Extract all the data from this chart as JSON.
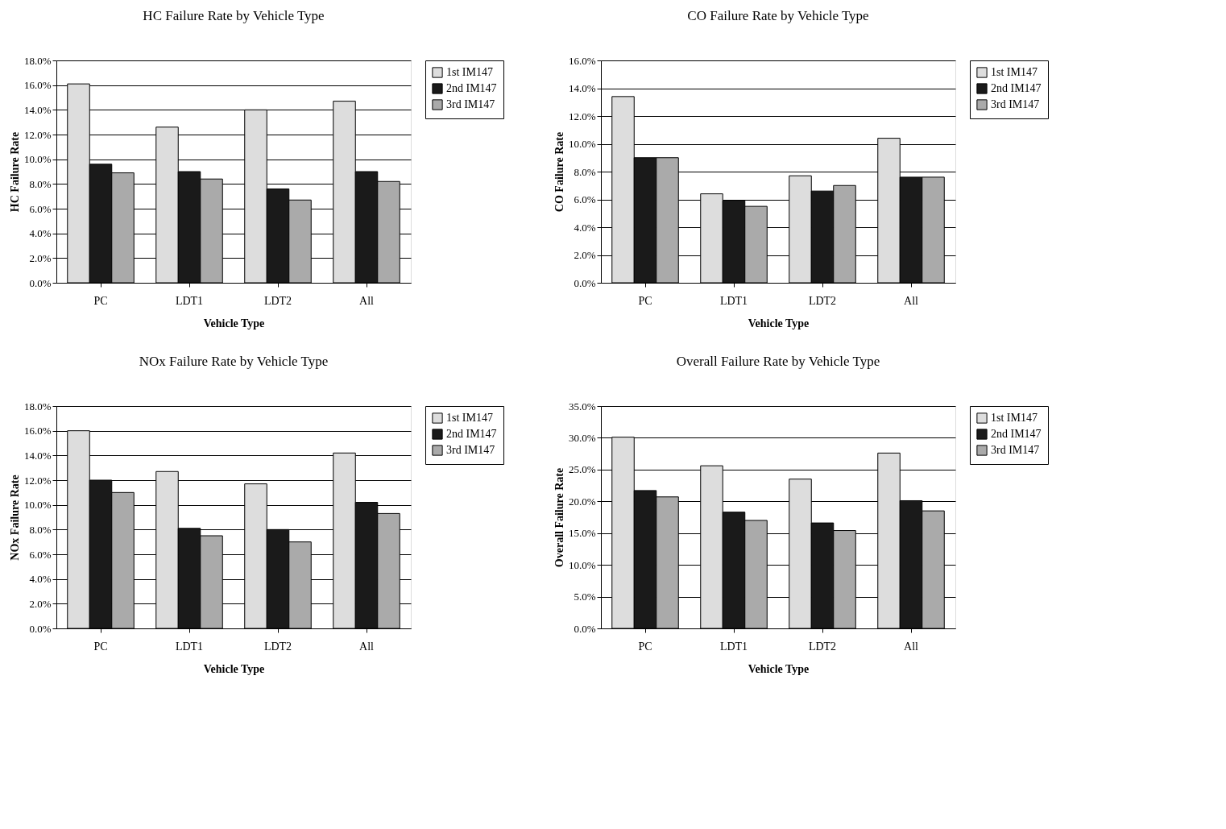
{
  "chart_data": [
    {
      "type": "bar",
      "title": "HC Failure Rate by Vehicle Type",
      "xlabel": "Vehicle Type",
      "ylabel": "HC Failure Rate",
      "categories": [
        "PC",
        "LDT1",
        "LDT2",
        "All"
      ],
      "series": [
        {
          "name": "1st IM147",
          "color": "#dddddd",
          "values": [
            16.1,
            12.6,
            14.0,
            14.7
          ]
        },
        {
          "name": "2nd IM147",
          "color": "#1a1a1a",
          "values": [
            9.6,
            9.0,
            7.6,
            9.0
          ]
        },
        {
          "name": "3rd IM147",
          "color": "#aaaaaa",
          "values": [
            8.9,
            8.4,
            6.7,
            8.2
          ]
        }
      ],
      "ylim": [
        0,
        18
      ],
      "yticks": [
        {
          "value": 0,
          "label": "0.0%"
        },
        {
          "value": 2,
          "label": "2.0%"
        },
        {
          "value": 4,
          "label": "4.0%"
        },
        {
          "value": 6,
          "label": "6.0%"
        },
        {
          "value": 8,
          "label": "8.0%"
        },
        {
          "value": 10,
          "label": "10.0%"
        },
        {
          "value": 12,
          "label": "12.0%"
        },
        {
          "value": 14,
          "label": "14.0%"
        },
        {
          "value": 16,
          "label": "16.0%"
        },
        {
          "value": 18,
          "label": "18.0%"
        }
      ],
      "grid": "y",
      "legend": "right"
    },
    {
      "type": "bar",
      "title": "CO Failure Rate by Vehicle Type",
      "xlabel": "Vehicle Type",
      "ylabel": "CO Failure Rate",
      "categories": [
        "PC",
        "LDT1",
        "LDT2",
        "All"
      ],
      "series": [
        {
          "name": "1st IM147",
          "color": "#dddddd",
          "values": [
            13.4,
            6.4,
            7.7,
            10.4
          ]
        },
        {
          "name": "2nd IM147",
          "color": "#1a1a1a",
          "values": [
            9.0,
            5.9,
            6.6,
            7.6
          ]
        },
        {
          "name": "3rd IM147",
          "color": "#aaaaaa",
          "values": [
            9.0,
            5.5,
            7.0,
            7.6
          ]
        }
      ],
      "ylim": [
        0,
        16
      ],
      "yticks": [
        {
          "value": 0,
          "label": "0.0%"
        },
        {
          "value": 2,
          "label": "2.0%"
        },
        {
          "value": 4,
          "label": "4.0%"
        },
        {
          "value": 6,
          "label": "6.0%"
        },
        {
          "value": 8,
          "label": "8.0%"
        },
        {
          "value": 10,
          "label": "10.0%"
        },
        {
          "value": 12,
          "label": "12.0%"
        },
        {
          "value": 14,
          "label": "14.0%"
        },
        {
          "value": 16,
          "label": "16.0%"
        }
      ],
      "grid": "y",
      "legend": "right"
    },
    {
      "type": "bar",
      "title": "NOx Failure Rate by Vehicle Type",
      "xlabel": "Vehicle Type",
      "ylabel": "NOx Failure Rate",
      "categories": [
        "PC",
        "LDT1",
        "LDT2",
        "All"
      ],
      "series": [
        {
          "name": "1st IM147",
          "color": "#dddddd",
          "values": [
            16.0,
            12.7,
            11.7,
            14.2
          ]
        },
        {
          "name": "2nd IM147",
          "color": "#1a1a1a",
          "values": [
            12.0,
            8.1,
            8.0,
            10.2
          ]
        },
        {
          "name": "3rd IM147",
          "color": "#aaaaaa",
          "values": [
            11.0,
            7.5,
            7.0,
            9.3
          ]
        }
      ],
      "ylim": [
        0,
        18
      ],
      "yticks": [
        {
          "value": 0,
          "label": "0.0%"
        },
        {
          "value": 2,
          "label": "2.0%"
        },
        {
          "value": 4,
          "label": "4.0%"
        },
        {
          "value": 6,
          "label": "6.0%"
        },
        {
          "value": 8,
          "label": "8.0%"
        },
        {
          "value": 10,
          "label": "10.0%"
        },
        {
          "value": 12,
          "label": "12.0%"
        },
        {
          "value": 14,
          "label": "14.0%"
        },
        {
          "value": 16,
          "label": "16.0%"
        },
        {
          "value": 18,
          "label": "18.0%"
        }
      ],
      "grid": "y",
      "legend": "right"
    },
    {
      "type": "bar",
      "title": "Overall Failure Rate by Vehicle Type",
      "xlabel": "Vehicle Type",
      "ylabel": "Overall Failure Rate",
      "categories": [
        "PC",
        "LDT1",
        "LDT2",
        "All"
      ],
      "series": [
        {
          "name": "1st IM147",
          "color": "#dddddd",
          "values": [
            30.1,
            25.6,
            23.5,
            27.6
          ]
        },
        {
          "name": "2nd IM147",
          "color": "#1a1a1a",
          "values": [
            21.7,
            18.3,
            16.6,
            20.1
          ]
        },
        {
          "name": "3rd IM147",
          "color": "#aaaaaa",
          "values": [
            20.7,
            17.0,
            15.4,
            18.5
          ]
        }
      ],
      "ylim": [
        0,
        35
      ],
      "yticks": [
        {
          "value": 0,
          "label": "0.0%"
        },
        {
          "value": 5,
          "label": "5.0%"
        },
        {
          "value": 10,
          "label": "10.0%"
        },
        {
          "value": 15,
          "label": "15.0%"
        },
        {
          "value": 20,
          "label": "20.0%"
        },
        {
          "value": 25,
          "label": "25.0%"
        },
        {
          "value": 30,
          "label": "30.0%"
        },
        {
          "value": 35,
          "label": "35.0%"
        }
      ],
      "grid": "y",
      "legend": "right"
    }
  ]
}
